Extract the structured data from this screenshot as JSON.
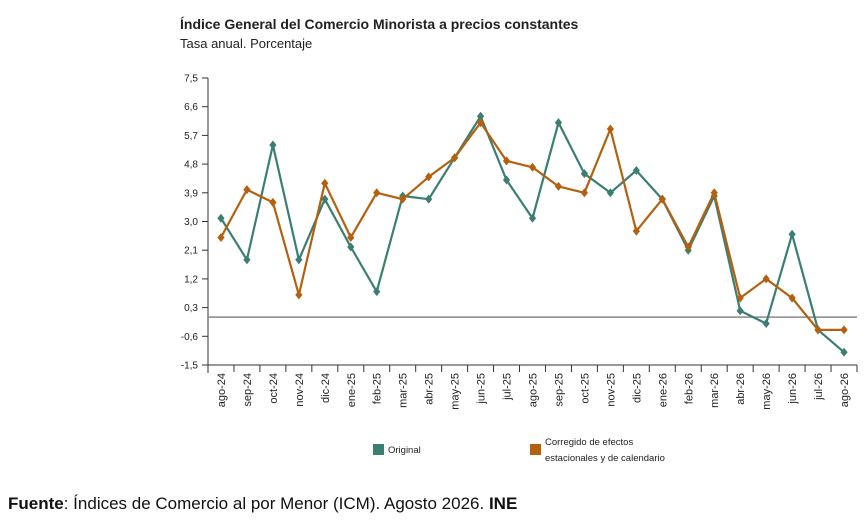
{
  "chart_data": {
    "type": "line",
    "title": "Índice General del Comercio Minorista a precios constantes",
    "subtitle": "Tasa anual. Porcentaje",
    "xlabel": "",
    "ylabel": "",
    "ylim": [
      -1.5,
      7.5
    ],
    "yticks": [
      "7,5",
      "6,6",
      "5,7",
      "4,8",
      "3,9",
      "3,0",
      "2,1",
      "1,2",
      "0,3",
      "-0,6",
      "-1,5"
    ],
    "categories": [
      "ago-24",
      "sep-24",
      "oct-24",
      "nov-24",
      "dic-24",
      "ene-25",
      "feb-25",
      "mar-25",
      "abr-25",
      "may-25",
      "jun-25",
      "jul-25",
      "ago-25",
      "sep-25",
      "oct-25",
      "nov-25",
      "dic-25",
      "ene-26",
      "feb-26",
      "mar-26",
      "abr-26",
      "may-26",
      "jun-26",
      "jul-26",
      "ago-26"
    ],
    "reference_line": 0,
    "series": [
      {
        "name": "Original",
        "color": "#3a7f72",
        "values": [
          3.1,
          1.8,
          5.4,
          1.8,
          3.7,
          2.2,
          0.8,
          3.8,
          3.7,
          5.0,
          6.3,
          4.3,
          3.1,
          6.1,
          4.5,
          3.9,
          4.6,
          3.7,
          2.1,
          3.8,
          0.2,
          -0.2,
          2.6,
          -0.4,
          -1.1
        ]
      },
      {
        "name": "Corregido de efectos estacionales y de calendario",
        "color": "#b5600e",
        "values": [
          2.5,
          4.0,
          3.6,
          0.7,
          4.2,
          2.5,
          3.9,
          3.7,
          4.4,
          5.0,
          6.1,
          4.9,
          4.7,
          4.1,
          3.9,
          5.9,
          2.7,
          3.7,
          2.2,
          3.9,
          0.6,
          1.2,
          0.6,
          -0.4,
          -0.4
        ]
      }
    ],
    "legend": [
      {
        "label": "Original",
        "color": "#3a7f72"
      },
      {
        "label_line1": "Corregido de efectos",
        "label_line2": "estacionales y de calendario",
        "color": "#b5600e"
      }
    ]
  },
  "source": {
    "prefix": "Fuente",
    "text": ": Índices de Comercio al por Menor (ICM). Agosto 2026. ",
    "org": "INE"
  }
}
